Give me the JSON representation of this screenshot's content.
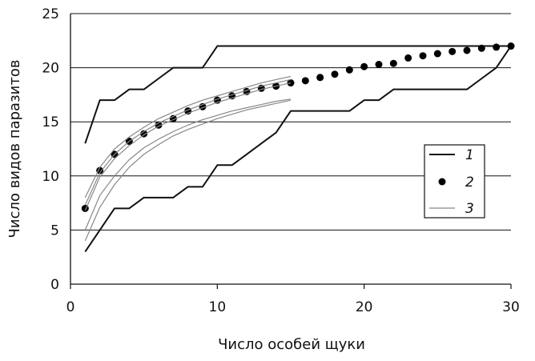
{
  "chart_data": {
    "type": "line",
    "xlabel": "Число особей щуки",
    "ylabel": "Число видов паразитов",
    "xlim": [
      0,
      30
    ],
    "ylim": [
      0,
      25
    ],
    "x_ticks": [
      0,
      10,
      20,
      30
    ],
    "y_ticks": [
      0,
      5,
      10,
      15,
      20,
      25
    ],
    "grid": "horizontal",
    "legend_position": "right",
    "series": [
      {
        "name": "1",
        "style": "upper bound line",
        "x": [
          1,
          2,
          3,
          4,
          5,
          6,
          7,
          8,
          9,
          10,
          11,
          12,
          13,
          14,
          15,
          16,
          17,
          18,
          19,
          20,
          21,
          22,
          23,
          24,
          25,
          26,
          27,
          28,
          29,
          30
        ],
        "values": [
          13,
          17,
          17,
          18,
          18,
          19,
          20,
          20,
          20,
          22,
          22,
          22,
          22,
          22,
          22,
          22,
          22,
          22,
          22,
          22,
          22,
          22,
          22,
          22,
          22,
          22,
          22,
          22,
          22,
          22
        ]
      },
      {
        "name": "1",
        "style": "lower bound line",
        "x": [
          1,
          2,
          3,
          4,
          5,
          6,
          7,
          8,
          9,
          10,
          11,
          12,
          13,
          14,
          15,
          16,
          17,
          18,
          19,
          20,
          21,
          22,
          23,
          24,
          25,
          26,
          27,
          28,
          29,
          30
        ],
        "values": [
          3,
          5,
          7,
          7,
          8,
          8,
          8,
          9,
          9,
          11,
          11,
          12,
          13,
          14,
          16,
          16,
          16,
          16,
          16,
          17,
          17,
          18,
          18,
          18,
          18,
          18,
          18,
          19,
          20,
          22
        ]
      },
      {
        "name": "2",
        "style": "points",
        "x": [
          1,
          2,
          3,
          4,
          5,
          6,
          7,
          8,
          9,
          10,
          11,
          12,
          13,
          14,
          15,
          16,
          17,
          18,
          19,
          20,
          21,
          22,
          23,
          24,
          25,
          26,
          27,
          28,
          29,
          30
        ],
        "values": [
          7,
          10.5,
          12,
          13.2,
          13.9,
          14.7,
          15.3,
          16,
          16.4,
          17,
          17.4,
          17.8,
          18.1,
          18.3,
          18.6,
          18.8,
          19.1,
          19.4,
          19.8,
          20.1,
          20.3,
          20.4,
          20.9,
          21.1,
          21.3,
          21.5,
          21.6,
          21.8,
          21.9,
          22
        ]
      },
      {
        "name": "3",
        "style": "thin curve",
        "x": [
          1,
          2,
          3,
          4,
          5,
          6,
          7,
          8,
          9,
          10,
          11,
          12,
          13,
          14,
          15
        ],
        "values": [
          8,
          10.8,
          12.5,
          13.6,
          14.5,
          15.3,
          15.9,
          16.5,
          17,
          17.4,
          17.8,
          18.2,
          18.6,
          18.9,
          19.2
        ]
      },
      {
        "name": "3",
        "style": "thin curve",
        "x": [
          1,
          2,
          3,
          4,
          5,
          6,
          7,
          8,
          9,
          10,
          11,
          12,
          13,
          14,
          15
        ],
        "values": [
          7.3,
          10.3,
          12,
          13.2,
          14.1,
          14.9,
          15.5,
          16.1,
          16.6,
          17.1,
          17.5,
          17.9,
          18.3,
          18.6,
          18.9
        ]
      },
      {
        "name": "3",
        "style": "thin curve",
        "x": [
          1,
          2,
          3,
          4,
          5,
          6,
          7,
          8,
          9,
          10,
          11,
          12,
          13,
          14,
          15
        ],
        "values": [
          6.8,
          9.9,
          11.6,
          12.8,
          13.8,
          14.6,
          15.2,
          15.8,
          16.3,
          16.8,
          17.2,
          17.6,
          18,
          18.3,
          18.6
        ]
      },
      {
        "name": "3",
        "style": "thin curve",
        "x": [
          1,
          2,
          3,
          4,
          5,
          6,
          7,
          8,
          9,
          10,
          11,
          12,
          13,
          14,
          15
        ],
        "values": [
          5,
          8.2,
          10,
          11.5,
          12.6,
          13.4,
          14.1,
          14.7,
          15.2,
          15.6,
          16,
          16.3,
          16.6,
          16.9,
          17.1
        ]
      },
      {
        "name": "3",
        "style": "thin curve",
        "x": [
          1,
          2,
          3,
          4,
          5,
          6,
          7,
          8,
          9,
          10,
          11,
          12,
          13,
          14,
          15
        ],
        "values": [
          4,
          7.1,
          9.2,
          10.8,
          12,
          12.9,
          13.7,
          14.3,
          14.8,
          15.3,
          15.7,
          16.1,
          16.4,
          16.7,
          17
        ]
      }
    ],
    "legend": [
      "1",
      "2",
      "3"
    ],
    "colors": {
      "line_1": "#111111",
      "points_2": "#000000",
      "curves_3": "#888888",
      "grid": "#111111"
    }
  }
}
